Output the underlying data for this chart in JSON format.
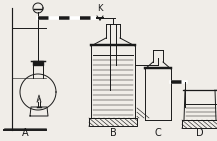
{
  "bg_color": "#f0ede8",
  "line_color": "#1a1a1a",
  "label_A": "A",
  "label_B": "B",
  "label_C": "C",
  "label_D": "D",
  "label_K": "K",
  "figsize": [
    2.17,
    1.41
  ],
  "dpi": 100
}
